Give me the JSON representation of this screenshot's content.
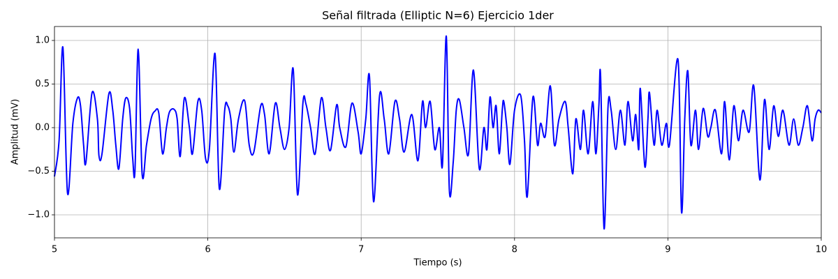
{
  "chart_data": {
    "type": "line",
    "title": "Señal filtrada (Elliptic N=6) Ejercicio 1der",
    "x_label": "Tiempo (s)",
    "y_label": "Amplitud (mV)",
    "xlim": [
      5,
      10
    ],
    "ylim": [
      -1.264,
      1.16
    ],
    "xticks": [
      5,
      6,
      7,
      8,
      9,
      10
    ],
    "yticks": [
      {
        "value": -1.0,
        "label": "−1.0"
      },
      {
        "value": -0.5,
        "label": "−0.5"
      },
      {
        "value": 0.0,
        "label": "0.0"
      },
      0.5,
      {
        "value": 1.0,
        "label": "1.0"
      }
    ],
    "grid": true,
    "series": [
      {
        "name": "Señal filtrada",
        "color": "#0000ff",
        "x": [
          5.0,
          5.03,
          5.055,
          5.085,
          5.12,
          5.15,
          5.17,
          5.19,
          5.205,
          5.245,
          5.28,
          5.29,
          5.31,
          5.355,
          5.38,
          5.4,
          5.42,
          5.445,
          5.465,
          5.49,
          5.51,
          5.525,
          5.546,
          5.572,
          5.6,
          5.63,
          5.655,
          5.68,
          5.705,
          5.73,
          5.75,
          5.78,
          5.8,
          5.82,
          5.847,
          5.88,
          5.9,
          5.935,
          5.96,
          5.985,
          6.01,
          6.047,
          6.075,
          6.11,
          6.13,
          6.15,
          6.17,
          6.2,
          6.24,
          6.27,
          6.3,
          6.345,
          6.37,
          6.4,
          6.44,
          6.47,
          6.5,
          6.53,
          6.557,
          6.585,
          6.62,
          6.64,
          6.67,
          6.7,
          6.74,
          6.77,
          6.8,
          6.84,
          6.86,
          6.9,
          6.94,
          6.98,
          7.0,
          7.03,
          7.054,
          7.081,
          7.12,
          7.15,
          7.18,
          7.22,
          7.25,
          7.28,
          7.33,
          7.37,
          7.4,
          7.42,
          7.45,
          7.48,
          7.51,
          7.53,
          7.555,
          7.575,
          7.6,
          7.62,
          7.64,
          7.67,
          7.7,
          7.732,
          7.77,
          7.8,
          7.82,
          7.84,
          7.86,
          7.88,
          7.9,
          7.92,
          7.93,
          7.95,
          7.97,
          8.0,
          8.04,
          8.065,
          8.083,
          8.12,
          8.15,
          8.17,
          8.2,
          8.233,
          8.26,
          8.29,
          8.33,
          8.35,
          8.38,
          8.4,
          8.43,
          8.45,
          8.48,
          8.51,
          8.53,
          8.55,
          8.561,
          8.584,
          8.61,
          8.63,
          8.66,
          8.69,
          8.72,
          8.74,
          8.77,
          8.79,
          8.81,
          8.82,
          8.85,
          8.87,
          8.88,
          8.91,
          8.93,
          8.96,
          8.99,
          9.01,
          9.066,
          9.089,
          9.11,
          9.13,
          9.15,
          9.18,
          9.2,
          9.23,
          9.26,
          9.28,
          9.31,
          9.35,
          9.37,
          9.4,
          9.43,
          9.46,
          9.49,
          9.53,
          9.56,
          9.6,
          9.63,
          9.66,
          9.69,
          9.72,
          9.75,
          9.79,
          9.82,
          9.85,
          9.88,
          9.91,
          9.94,
          9.96,
          9.98,
          10.0
        ],
        "values": [
          -0.56,
          -0.15,
          0.92,
          -0.75,
          0.05,
          0.34,
          0.25,
          -0.2,
          -0.4,
          0.4,
          0.1,
          -0.32,
          -0.3,
          0.39,
          0.2,
          -0.2,
          -0.47,
          0.1,
          0.34,
          0.22,
          -0.35,
          -0.49,
          0.9,
          -0.54,
          -0.2,
          0.1,
          0.19,
          0.17,
          -0.3,
          0.0,
          0.18,
          0.21,
          0.1,
          -0.33,
          0.34,
          0.0,
          -0.3,
          0.3,
          0.2,
          -0.35,
          -0.25,
          0.85,
          -0.7,
          0.2,
          0.25,
          0.1,
          -0.28,
          0.1,
          0.31,
          -0.2,
          -0.28,
          0.25,
          0.15,
          -0.3,
          0.28,
          0.0,
          -0.25,
          0.0,
          0.67,
          -0.77,
          0.28,
          0.27,
          0.0,
          -0.3,
          0.34,
          0.0,
          -0.26,
          0.26,
          0.0,
          -0.22,
          0.28,
          -0.05,
          -0.3,
          0.1,
          0.59,
          -0.85,
          0.37,
          0.1,
          -0.3,
          0.3,
          0.1,
          -0.28,
          0.15,
          -0.38,
          0.3,
          0.0,
          0.3,
          -0.25,
          0.0,
          -0.43,
          1.05,
          -0.72,
          -0.4,
          0.2,
          0.32,
          0.0,
          -0.3,
          0.66,
          -0.47,
          0.0,
          -0.25,
          0.35,
          0.0,
          0.25,
          -0.3,
          0.2,
          0.3,
          0.0,
          -0.42,
          0.2,
          0.37,
          -0.15,
          -0.79,
          0.35,
          -0.2,
          0.05,
          -0.1,
          0.48,
          -0.2,
          0.1,
          0.3,
          0.0,
          -0.53,
          0.1,
          -0.25,
          0.2,
          -0.3,
          0.3,
          -0.3,
          0.25,
          0.6,
          -1.16,
          0.25,
          0.2,
          -0.25,
          0.2,
          -0.2,
          0.3,
          -0.15,
          0.15,
          -0.25,
          0.45,
          -0.45,
          0.1,
          0.4,
          -0.2,
          0.2,
          -0.2,
          0.05,
          -0.2,
          0.78,
          -0.97,
          0.1,
          0.65,
          -0.2,
          0.2,
          -0.25,
          0.22,
          -0.1,
          0.0,
          0.2,
          -0.3,
          0.3,
          -0.37,
          0.25,
          -0.15,
          0.2,
          -0.05,
          0.48,
          -0.6,
          0.32,
          -0.25,
          0.25,
          -0.1,
          0.2,
          -0.2,
          0.1,
          -0.2,
          0.0,
          0.25,
          -0.15,
          0.1,
          0.2,
          0.17
        ]
      }
    ]
  }
}
